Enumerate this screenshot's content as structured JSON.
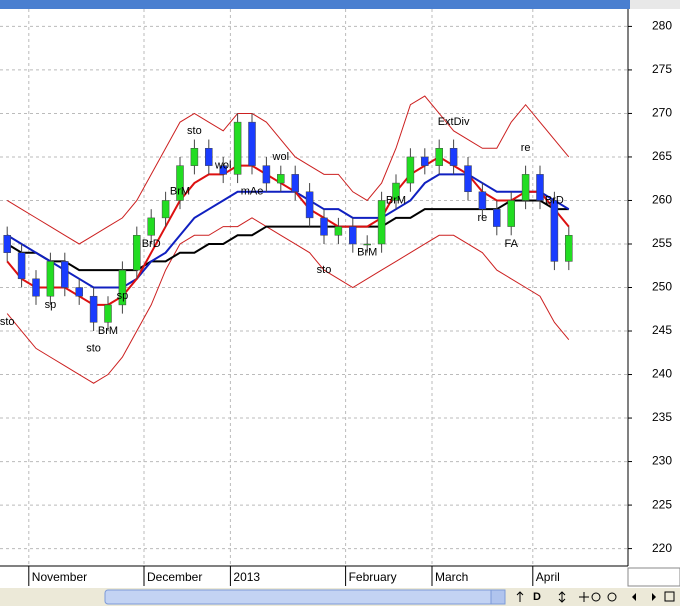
{
  "chart_data": {
    "type": "candlestick",
    "categories": [
      null,
      null,
      "November",
      null,
      null,
      null,
      null,
      null,
      null,
      null,
      "December",
      null,
      null,
      null,
      null,
      null,
      "2013",
      null,
      null,
      null,
      null,
      null,
      null,
      null,
      "February",
      null,
      null,
      null,
      null,
      null,
      "March",
      null,
      null,
      null,
      null,
      null,
      null,
      "April",
      null,
      null
    ],
    "open": [
      256,
      254,
      251,
      249,
      253,
      250,
      249,
      246,
      248,
      252,
      256,
      258,
      260,
      264,
      266,
      264,
      263,
      269,
      264,
      262,
      263,
      261,
      258,
      256,
      257,
      255,
      255,
      260,
      262,
      265,
      264,
      266,
      264,
      261,
      259,
      257,
      260,
      263,
      260,
      253
    ],
    "high": [
      257,
      255,
      252,
      254,
      254,
      251,
      250,
      249,
      253,
      257,
      259,
      261,
      265,
      267,
      267,
      265,
      270,
      270,
      265,
      264,
      264,
      262,
      259,
      258,
      258,
      256,
      261,
      263,
      266,
      266,
      267,
      267,
      265,
      262,
      260,
      261,
      264,
      264,
      261,
      257
    ],
    "low": [
      253,
      250,
      248,
      248,
      249,
      248,
      245,
      245,
      247,
      251,
      255,
      257,
      259,
      263,
      263,
      262,
      262,
      263,
      261,
      261,
      260,
      257,
      255,
      255,
      254,
      254,
      254,
      259,
      261,
      263,
      263,
      263,
      260,
      258,
      256,
      256,
      259,
      259,
      252,
      252
    ],
    "close": [
      254,
      251,
      249,
      253,
      250,
      249,
      246,
      248,
      252,
      256,
      258,
      260,
      264,
      266,
      264,
      263,
      269,
      264,
      262,
      263,
      261,
      258,
      256,
      257,
      255,
      255,
      260,
      262,
      265,
      264,
      266,
      264,
      261,
      259,
      257,
      260,
      263,
      260,
      253,
      256
    ],
    "up_color": "#22dd22",
    "down_color": "#1a3cff",
    "series": [
      {
        "color": "#cc2020",
        "values": [
          260,
          259,
          258,
          257,
          256,
          255,
          256,
          257,
          258,
          260,
          263,
          266,
          269,
          270,
          269,
          268,
          270,
          270,
          269,
          267,
          265,
          264,
          263,
          263,
          261,
          260,
          262,
          266,
          271,
          272,
          270,
          268,
          267,
          266,
          266,
          269,
          271,
          269,
          267,
          265
        ]
      },
      {
        "color": "#cc2020",
        "values": [
          247,
          245,
          243,
          242,
          241,
          240,
          239,
          240,
          242,
          245,
          248,
          252,
          255,
          256,
          256,
          257,
          257,
          258,
          257,
          256,
          255,
          254,
          252,
          251,
          250,
          251,
          252,
          253,
          254,
          255,
          256,
          256,
          255,
          254,
          252,
          251,
          250,
          249,
          246,
          244
        ]
      },
      {
        "color": "#000000",
        "values": [
          255,
          254,
          254,
          253,
          253,
          252,
          252,
          252,
          252,
          252,
          253,
          253,
          254,
          254,
          255,
          255,
          256,
          256,
          257,
          257,
          257,
          257,
          257,
          257,
          257,
          257,
          257,
          258,
          258,
          259,
          259,
          259,
          259,
          259,
          259,
          260,
          260,
          260,
          259,
          259
        ]
      },
      {
        "color": "#1020c0",
        "values": [
          256,
          255,
          254,
          253,
          252,
          251,
          250,
          250,
          250,
          251,
          253,
          254,
          256,
          258,
          259,
          260,
          261,
          261,
          261,
          261,
          261,
          260,
          259,
          259,
          258,
          258,
          258,
          259,
          260,
          262,
          263,
          263,
          263,
          262,
          261,
          261,
          261,
          261,
          260,
          259
        ]
      },
      {
        "color": "#dd1010",
        "values": [
          253,
          251,
          250,
          250,
          250,
          249,
          248,
          248,
          249,
          251,
          254,
          257,
          260,
          262,
          263,
          263,
          264,
          264,
          263,
          262,
          261,
          259,
          258,
          257,
          257,
          257,
          258,
          261,
          263,
          264,
          265,
          264,
          263,
          261,
          260,
          260,
          261,
          261,
          259,
          257
        ]
      }
    ],
    "annotations": [
      {
        "text": "sto",
        "category": 0,
        "price": 246
      },
      {
        "text": "sp",
        "category": 3,
        "price": 248
      },
      {
        "text": "sto",
        "category": 6,
        "price": 243
      },
      {
        "text": "BrM",
        "category": 7,
        "price": 245
      },
      {
        "text": "sp",
        "category": 8,
        "price": 249
      },
      {
        "text": "BrD",
        "category": 10,
        "price": 255
      },
      {
        "text": "BrM",
        "category": 12,
        "price": 261
      },
      {
        "text": "sto",
        "category": 13,
        "price": 268
      },
      {
        "text": "wol",
        "category": 15,
        "price": 264
      },
      {
        "text": "mAe",
        "category": 17,
        "price": 261
      },
      {
        "text": "wol",
        "category": 19,
        "price": 265
      },
      {
        "text": "sto",
        "category": 22,
        "price": 252
      },
      {
        "text": "BrM",
        "category": 25,
        "price": 254
      },
      {
        "text": "BrM",
        "category": 27,
        "price": 260
      },
      {
        "text": "ExtDiv",
        "category": 31,
        "price": 269
      },
      {
        "text": "re",
        "category": 33,
        "price": 258
      },
      {
        "text": "FA",
        "category": 35,
        "price": 255
      },
      {
        "text": "re",
        "category": 36,
        "price": 266
      },
      {
        "text": "BrD",
        "category": 38,
        "price": 260
      }
    ],
    "ylim": [
      218,
      282
    ],
    "yticks": [
      220,
      225,
      230,
      235,
      240,
      245,
      250,
      255,
      260,
      265,
      270,
      275,
      280
    ],
    "grid": true,
    "toolbar": [
      "D"
    ]
  }
}
